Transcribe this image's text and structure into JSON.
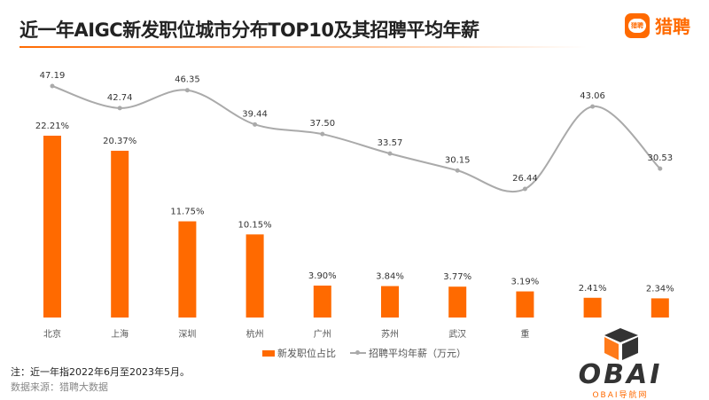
{
  "title": "近一年AIGC新发职位城市分布TOP10及其招聘平均年薪",
  "logo": {
    "badge_text": "猎聘",
    "text": "猎聘"
  },
  "watermark": {
    "text": "OBAI",
    "sub": "OBAI导航网"
  },
  "note": "注：近一年指2022年6月至2023年5月。",
  "source": "数据来源：猎聘大数据",
  "colors": {
    "bar": "#ff6a00",
    "line": "#aaaaaa"
  },
  "chart_data": {
    "type": "bar+line",
    "categories": [
      "北京",
      "上海",
      "深圳",
      "杭州",
      "广州",
      "苏州",
      "武汉",
      "重",
      "",
      ""
    ],
    "series": [
      {
        "name": "新发职位占比",
        "type": "bar",
        "values": [
          22.21,
          20.37,
          11.75,
          10.15,
          3.9,
          3.84,
          3.77,
          3.19,
          2.41,
          2.34
        ],
        "labels": [
          "22.21%",
          "20.37%",
          "11.75%",
          "10.15%",
          "3.90%",
          "3.84%",
          "3.77%",
          "3.19%",
          "2.41%",
          "2.34%"
        ]
      },
      {
        "name": "招聘平均年薪（万元）",
        "type": "line",
        "smooth": true,
        "values": [
          47.19,
          42.74,
          46.35,
          39.44,
          37.5,
          33.57,
          30.15,
          26.44,
          43.06,
          30.53
        ],
        "labels": [
          "47.19",
          "42.74",
          "46.35",
          "39.44",
          "37.50",
          "33.57",
          "30.15",
          "26.44",
          "43.06",
          "30.53"
        ]
      }
    ],
    "legend": "bottom",
    "grid": false
  }
}
